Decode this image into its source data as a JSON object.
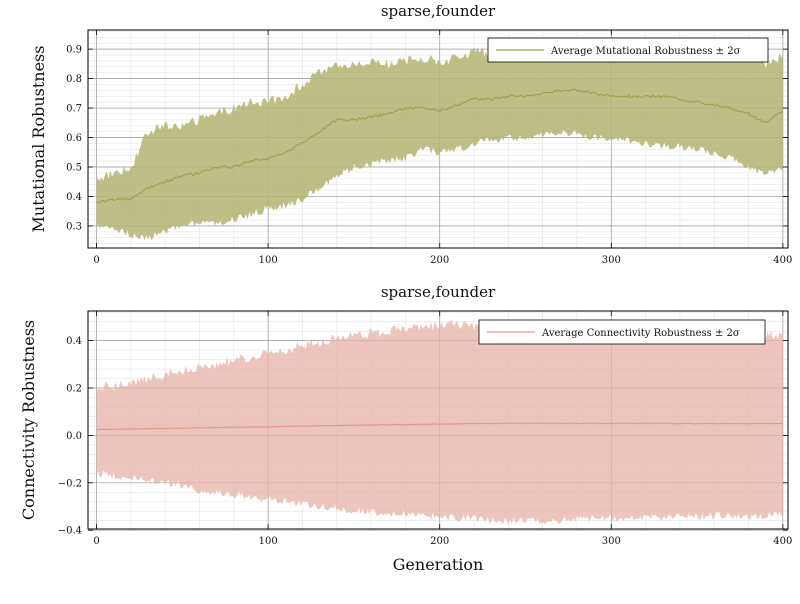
{
  "chart_data": [
    {
      "type": "line",
      "title": "sparse,founder",
      "xlabel": "",
      "ylabel": "Mutational Robustness",
      "xlim": [
        -5,
        403
      ],
      "ylim": [
        0.225,
        0.965
      ],
      "x_ticks": [
        0,
        100,
        200,
        300,
        400
      ],
      "y_ticks": [
        0.3,
        0.4,
        0.5,
        0.6,
        0.7,
        0.8,
        0.9
      ],
      "x_tick_labels": [
        "0",
        "100",
        "200",
        "300",
        "400"
      ],
      "y_tick_labels": [
        "0.3",
        "0.4",
        "0.5",
        "0.6",
        "0.7",
        "0.8",
        "0.9"
      ],
      "grid": true,
      "legend_position": "top-right",
      "colors": {
        "line": "#a0a04e",
        "band": "#b2b472"
      },
      "series": [
        {
          "name": "Average Mutational Robustness ± 2σ",
          "x": [
            0,
            10,
            20,
            30,
            40,
            50,
            60,
            70,
            80,
            90,
            100,
            110,
            120,
            130,
            140,
            150,
            160,
            170,
            180,
            190,
            200,
            210,
            220,
            230,
            240,
            250,
            260,
            270,
            280,
            290,
            300,
            310,
            320,
            330,
            340,
            350,
            360,
            370,
            380,
            390,
            400
          ],
          "mean": [
            0.38,
            0.39,
            0.39,
            0.43,
            0.45,
            0.47,
            0.48,
            0.5,
            0.5,
            0.52,
            0.53,
            0.55,
            0.58,
            0.62,
            0.66,
            0.66,
            0.67,
            0.68,
            0.7,
            0.7,
            0.69,
            0.71,
            0.73,
            0.73,
            0.74,
            0.74,
            0.75,
            0.76,
            0.76,
            0.75,
            0.74,
            0.74,
            0.74,
            0.74,
            0.73,
            0.72,
            0.71,
            0.7,
            0.68,
            0.65,
            0.69
          ],
          "upper": [
            0.46,
            0.48,
            0.5,
            0.62,
            0.64,
            0.64,
            0.66,
            0.68,
            0.7,
            0.72,
            0.72,
            0.74,
            0.78,
            0.82,
            0.84,
            0.85,
            0.86,
            0.85,
            0.86,
            0.87,
            0.86,
            0.87,
            0.89,
            0.89,
            0.91,
            0.9,
            0.9,
            0.92,
            0.92,
            0.92,
            0.91,
            0.91,
            0.91,
            0.91,
            0.9,
            0.89,
            0.88,
            0.87,
            0.88,
            0.85,
            0.88
          ],
          "lower": [
            0.3,
            0.29,
            0.27,
            0.26,
            0.28,
            0.3,
            0.31,
            0.31,
            0.32,
            0.34,
            0.36,
            0.37,
            0.39,
            0.43,
            0.47,
            0.5,
            0.51,
            0.52,
            0.53,
            0.56,
            0.55,
            0.56,
            0.58,
            0.59,
            0.6,
            0.6,
            0.61,
            0.62,
            0.61,
            0.6,
            0.6,
            0.59,
            0.58,
            0.57,
            0.57,
            0.56,
            0.55,
            0.53,
            0.5,
            0.48,
            0.5
          ]
        }
      ]
    },
    {
      "type": "line",
      "title": "sparse,founder",
      "xlabel": "Generation",
      "ylabel": "Connectivity Robustness",
      "xlim": [
        -5,
        403
      ],
      "ylim": [
        -0.395,
        0.525
      ],
      "x_ticks": [
        0,
        100,
        200,
        300,
        400
      ],
      "y_ticks": [
        -0.4,
        -0.2,
        0.0,
        0.2,
        0.4
      ],
      "x_tick_labels": [
        "0",
        "100",
        "200",
        "300",
        "400"
      ],
      "y_tick_labels": [
        "−0.4",
        "−0.2",
        "0.0",
        "0.2",
        "0.4"
      ],
      "grid": true,
      "legend_position": "top-right",
      "colors": {
        "line": "#e39a8a",
        "band": "#e5b2a5"
      },
      "series": [
        {
          "name": "Average Connectivity Robustness ± 2σ",
          "x": [
            0,
            10,
            20,
            30,
            40,
            50,
            60,
            70,
            80,
            90,
            100,
            110,
            120,
            130,
            140,
            150,
            160,
            170,
            180,
            190,
            200,
            210,
            220,
            230,
            240,
            250,
            260,
            270,
            280,
            290,
            300,
            310,
            320,
            330,
            340,
            350,
            360,
            370,
            380,
            390,
            400
          ],
          "mean": [
            0.025,
            0.026,
            0.027,
            0.028,
            0.03,
            0.031,
            0.032,
            0.033,
            0.034,
            0.035,
            0.036,
            0.038,
            0.039,
            0.041,
            0.042,
            0.043,
            0.044,
            0.045,
            0.046,
            0.047,
            0.048,
            0.049,
            0.05,
            0.05,
            0.051,
            0.051,
            0.051,
            0.051,
            0.051,
            0.051,
            0.051,
            0.051,
            0.051,
            0.051,
            0.05,
            0.05,
            0.05,
            0.05,
            0.05,
            0.05,
            0.05
          ],
          "upper": [
            0.21,
            0.21,
            0.22,
            0.24,
            0.26,
            0.27,
            0.29,
            0.3,
            0.32,
            0.33,
            0.35,
            0.36,
            0.38,
            0.39,
            0.41,
            0.42,
            0.43,
            0.44,
            0.45,
            0.46,
            0.46,
            0.47,
            0.46,
            0.46,
            0.46,
            0.45,
            0.45,
            0.45,
            0.44,
            0.44,
            0.44,
            0.44,
            0.43,
            0.43,
            0.43,
            0.43,
            0.43,
            0.43,
            0.43,
            0.42,
            0.42
          ],
          "lower": [
            -0.16,
            -0.17,
            -0.18,
            -0.19,
            -0.2,
            -0.21,
            -0.23,
            -0.24,
            -0.25,
            -0.26,
            -0.27,
            -0.28,
            -0.29,
            -0.3,
            -0.31,
            -0.32,
            -0.32,
            -0.33,
            -0.33,
            -0.34,
            -0.34,
            -0.35,
            -0.35,
            -0.36,
            -0.36,
            -0.36,
            -0.36,
            -0.36,
            -0.35,
            -0.35,
            -0.35,
            -0.35,
            -0.35,
            -0.35,
            -0.34,
            -0.34,
            -0.34,
            -0.34,
            -0.34,
            -0.34,
            -0.33
          ]
        }
      ]
    }
  ]
}
